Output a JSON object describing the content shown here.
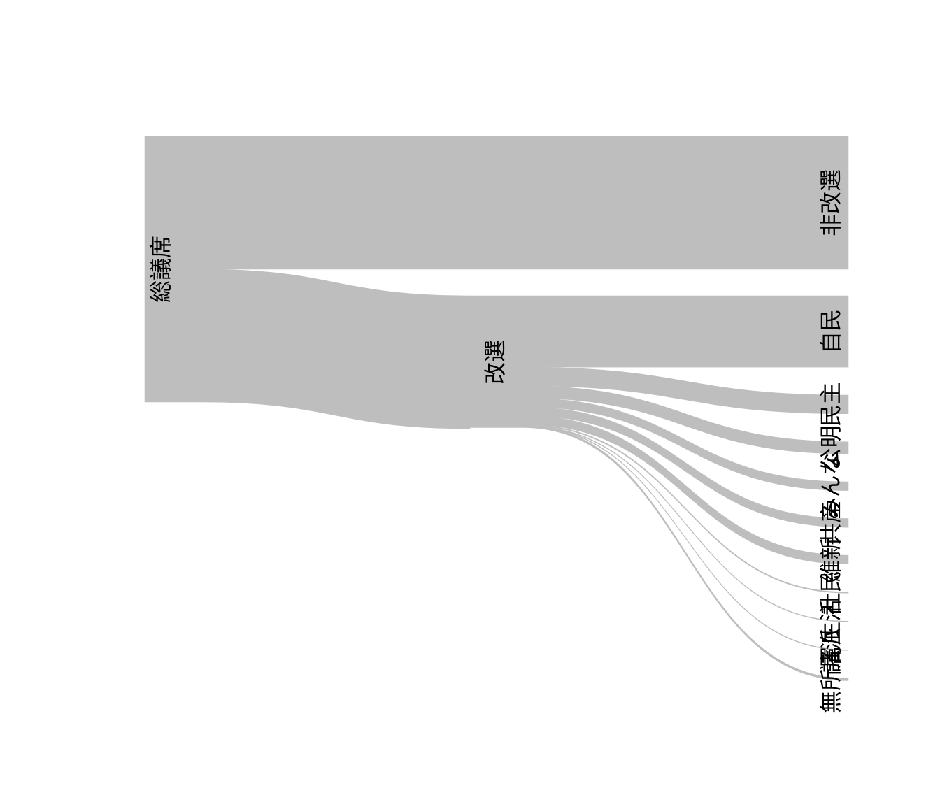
{
  "chart_data": {
    "type": "sankey",
    "title": "",
    "link_color": "#bebebe",
    "nodes": [
      {
        "id": "total",
        "label": "総議席"
      },
      {
        "id": "reelect",
        "label": "改選"
      },
      {
        "id": "non_reelect",
        "label": "非改選"
      },
      {
        "id": "ldp",
        "label": "自民"
      },
      {
        "id": "dpj",
        "label": "民主"
      },
      {
        "id": "komeito",
        "label": "公明"
      },
      {
        "id": "minna",
        "label": "みんな"
      },
      {
        "id": "jcp",
        "label": "共産"
      },
      {
        "id": "ishin",
        "label": "維新"
      },
      {
        "id": "sdp",
        "label": "社民"
      },
      {
        "id": "seikatsu",
        "label": "生活"
      },
      {
        "id": "others",
        "label": "諸派"
      },
      {
        "id": "independent",
        "label": "無所属"
      }
    ],
    "links": [
      {
        "source": "total",
        "target": "non_reelect",
        "value": 121
      },
      {
        "source": "total",
        "target": "reelect",
        "value": 121
      },
      {
        "source": "reelect",
        "target": "ldp",
        "value": 65
      },
      {
        "source": "reelect",
        "target": "dpj",
        "value": 17
      },
      {
        "source": "reelect",
        "target": "komeito",
        "value": 11
      },
      {
        "source": "reelect",
        "target": "minna",
        "value": 8
      },
      {
        "source": "reelect",
        "target": "jcp",
        "value": 8
      },
      {
        "source": "reelect",
        "target": "ishin",
        "value": 8
      },
      {
        "source": "reelect",
        "target": "sdp",
        "value": 1
      },
      {
        "source": "reelect",
        "target": "seikatsu",
        "value": 0
      },
      {
        "source": "reelect",
        "target": "others",
        "value": 0
      },
      {
        "source": "reelect",
        "target": "independent",
        "value": 2
      }
    ]
  }
}
